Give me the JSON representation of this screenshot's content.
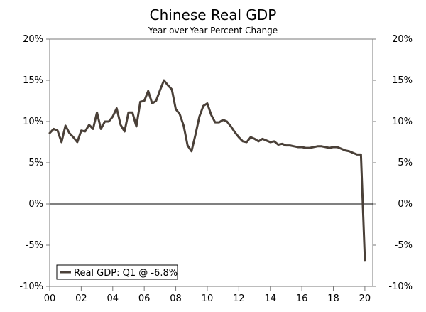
{
  "chart_data": {
    "type": "line",
    "title": "Chinese Real GDP",
    "subtitle": "Year-over-Year Percent Change",
    "xlabel": "",
    "ylabel": "",
    "x_tick_labels": [
      "00",
      "02",
      "04",
      "06",
      "08",
      "10",
      "12",
      "14",
      "16",
      "18",
      "20"
    ],
    "x_tick_years": [
      2000,
      2002,
      2004,
      2006,
      2008,
      2010,
      2012,
      2014,
      2016,
      2018,
      2020
    ],
    "xlim": [
      2000,
      2020.5
    ],
    "y_tick_labels": [
      "20%",
      "15%",
      "10%",
      "5%",
      "0%",
      "-5%",
      "-10%"
    ],
    "y_tick_values": [
      20,
      15,
      10,
      5,
      0,
      -5,
      -10
    ],
    "ylim": [
      -10,
      20
    ],
    "grid": false,
    "zero_line": true,
    "line_color": "#4a4038",
    "legend": {
      "position": "bottom-left",
      "label": "Real GDP: Q1 @ -6.8%"
    },
    "series": [
      {
        "name": "Real GDP",
        "x": [
          2000.0,
          2000.25,
          2000.5,
          2000.75,
          2001.0,
          2001.25,
          2001.5,
          2001.75,
          2002.0,
          2002.25,
          2002.5,
          2002.75,
          2003.0,
          2003.25,
          2003.5,
          2003.75,
          2004.0,
          2004.25,
          2004.5,
          2004.75,
          2005.0,
          2005.25,
          2005.5,
          2005.75,
          2006.0,
          2006.25,
          2006.5,
          2006.75,
          2007.0,
          2007.25,
          2007.5,
          2007.75,
          2008.0,
          2008.25,
          2008.5,
          2008.75,
          2009.0,
          2009.25,
          2009.5,
          2009.75,
          2010.0,
          2010.25,
          2010.5,
          2010.75,
          2011.0,
          2011.25,
          2011.5,
          2011.75,
          2012.0,
          2012.25,
          2012.5,
          2012.75,
          2013.0,
          2013.25,
          2013.5,
          2013.75,
          2014.0,
          2014.25,
          2014.5,
          2014.75,
          2015.0,
          2015.25,
          2015.5,
          2015.75,
          2016.0,
          2016.25,
          2016.5,
          2016.75,
          2017.0,
          2017.25,
          2017.5,
          2017.75,
          2018.0,
          2018.25,
          2018.5,
          2018.75,
          2019.0,
          2019.25,
          2019.5,
          2019.75,
          2020.0
        ],
        "values": [
          8.6,
          9.1,
          8.9,
          7.5,
          9.5,
          8.6,
          8.1,
          7.5,
          8.9,
          8.8,
          9.6,
          9.1,
          11.1,
          9.1,
          10.0,
          10.0,
          10.6,
          11.6,
          9.6,
          8.8,
          11.1,
          11.1,
          9.4,
          12.4,
          12.5,
          13.7,
          12.2,
          12.5,
          13.8,
          15.0,
          14.4,
          13.9,
          11.5,
          10.9,
          9.5,
          7.1,
          6.4,
          8.4,
          10.6,
          11.9,
          12.2,
          10.8,
          9.9,
          9.9,
          10.2,
          10.0,
          9.4,
          8.7,
          8.1,
          7.6,
          7.5,
          8.1,
          7.9,
          7.6,
          7.9,
          7.7,
          7.5,
          7.6,
          7.2,
          7.3,
          7.1,
          7.1,
          7.0,
          6.9,
          6.9,
          6.8,
          6.8,
          6.9,
          7.0,
          7.0,
          6.9,
          6.8,
          6.9,
          6.9,
          6.7,
          6.5,
          6.4,
          6.2,
          6.0,
          6.0,
          -6.8
        ]
      }
    ]
  }
}
